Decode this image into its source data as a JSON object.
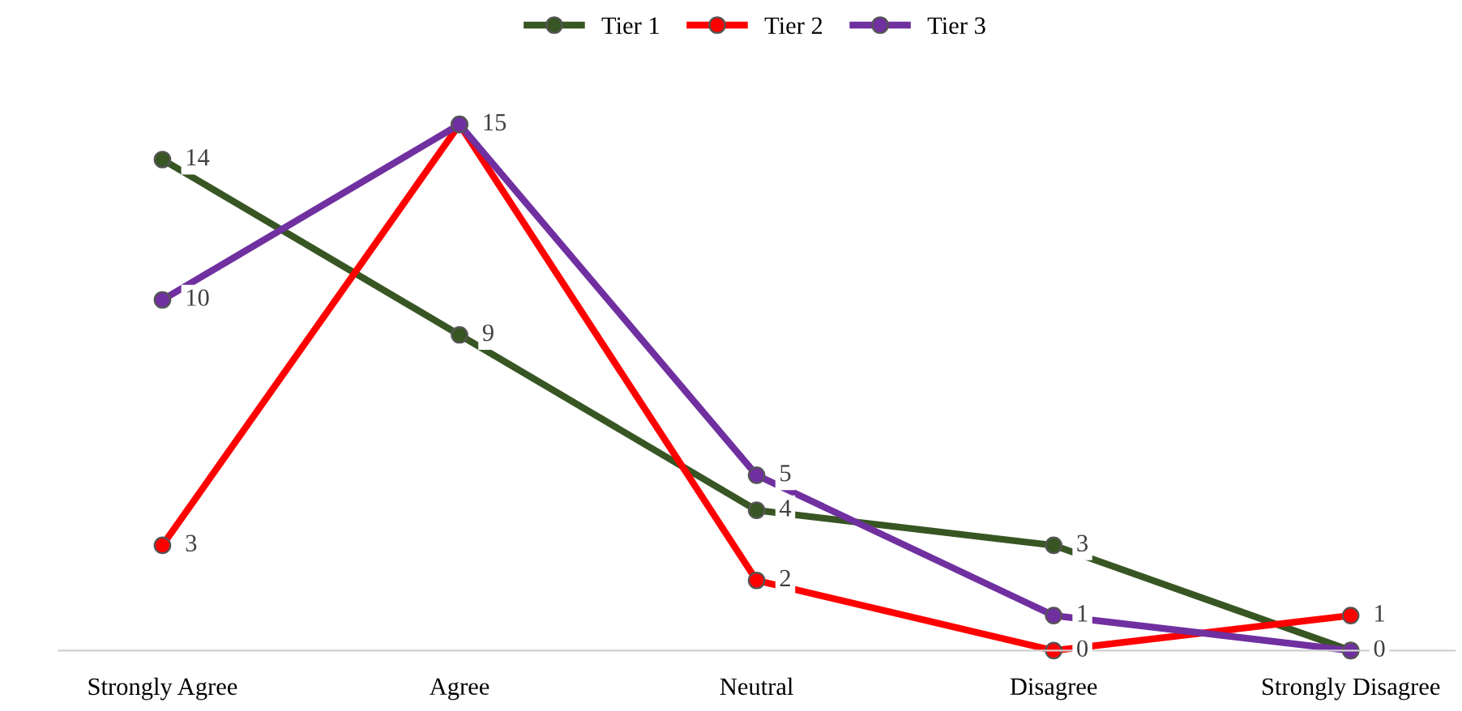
{
  "chart_data": {
    "type": "line",
    "categories": [
      "Strongly Agree",
      "Agree",
      "Neutral",
      "Disagree",
      "Strongly Disagree"
    ],
    "series": [
      {
        "name": "Tier 1",
        "color": "#375623",
        "values": [
          14,
          9,
          4,
          3,
          0
        ],
        "value_labels": [
          "14",
          "9",
          "4",
          "3",
          null
        ]
      },
      {
        "name": "Tier 2",
        "color": "#ff0000",
        "values": [
          3,
          15,
          2,
          0,
          1
        ],
        "value_labels": [
          "3",
          null,
          "2",
          "0",
          "1"
        ]
      },
      {
        "name": "Tier 3",
        "color": "#7030a0",
        "values": [
          10,
          15,
          5,
          1,
          0
        ],
        "value_labels": [
          "10",
          "15",
          "5",
          "1",
          "0"
        ]
      }
    ],
    "legend": "top",
    "marker": "circle",
    "line_style": "solid",
    "grid": false,
    "tick_labels": "x"
  }
}
